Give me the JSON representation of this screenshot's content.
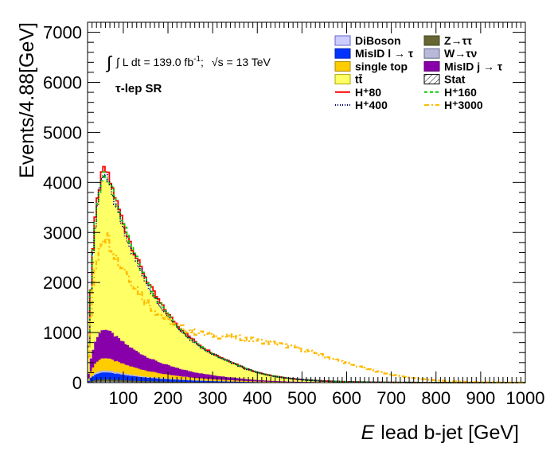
{
  "chart_data": {
    "type": "histogram",
    "xlabel_italic": "E",
    "xlabel": "lead b-jet [GeV]",
    "ylabel": "Events/4.88[GeV]",
    "xlim": [
      20,
      1000
    ],
    "ylim": [
      0,
      7200
    ],
    "x_ticks": [
      100,
      200,
      300,
      400,
      500,
      600,
      700,
      800,
      900,
      1000
    ],
    "y_ticks": [
      0,
      1000,
      2000,
      3000,
      4000,
      5000,
      6000,
      7000
    ],
    "bin_width": 4.88,
    "annotation": {
      "lumi_prefix": "∫ L dt = 139.0 fb",
      "lumi_sup": "-1",
      "lumi_sep": ";",
      "energy_sqrt": "√s",
      "energy_rest": " = 13 TeV",
      "region": "τ-lep SR"
    },
    "legend": [
      {
        "label": "DiBoson",
        "style": "box",
        "color": "#ccccff",
        "border": "#6666cc"
      },
      {
        "label": "Z→ττ",
        "style": "box",
        "color": "#666633",
        "border": "#444422"
      },
      {
        "label": "MisID l → τ",
        "style": "box",
        "color": "#0033ff",
        "border": "#0022aa"
      },
      {
        "label": "W→τν",
        "style": "box",
        "color": "#b8b8d8",
        "border": "#666688"
      },
      {
        "label": "single top",
        "style": "box",
        "color": "#ffcc00",
        "border": "#aa8800"
      },
      {
        "label": "MisID j → τ",
        "style": "box",
        "color": "#8800aa",
        "border": "#550066"
      },
      {
        "label": "tt̄",
        "style": "box",
        "color": "#ffff66",
        "border": "#aaaa00"
      },
      {
        "label": "Stat",
        "style": "hatch",
        "color": "#ffffff",
        "border": "#000000"
      },
      {
        "label": "H⁺80",
        "style": "line",
        "color": "#ff0000",
        "dash": ""
      },
      {
        "label": "H⁺160",
        "style": "line",
        "color": "#00cc00",
        "dash": "4,3"
      },
      {
        "label": "H⁺400",
        "style": "line",
        "color": "#000066",
        "dash": "1,2"
      },
      {
        "label": "H⁺3000",
        "style": "line",
        "color": "#ffbb00",
        "dash": "6,3,2,3"
      }
    ],
    "background_peak": {
      "x": 60,
      "y": 4100
    },
    "stack_components": [
      {
        "name": "DiBoson",
        "color": "#ccccff",
        "fraction": 0.005
      },
      {
        "name": "Z→ττ",
        "color": "#666633",
        "fraction": 0.01
      },
      {
        "name": "MisID l → τ",
        "color": "#0033ff",
        "fraction": 0.035
      },
      {
        "name": "W→τν",
        "color": "#b8b8d8",
        "fraction": 0.01
      },
      {
        "name": "single top",
        "color": "#ffcc00",
        "fraction": 0.06
      },
      {
        "name": "MisID j → τ",
        "color": "#8800aa",
        "fraction": 0.14
      },
      {
        "name": "tt̄",
        "color": "#ffff66",
        "fraction": 0.74
      }
    ],
    "signal_peaks": [
      {
        "name": "H⁺80",
        "x": 60,
        "y": 4300
      },
      {
        "name": "H⁺160",
        "x": 62,
        "y": 4300
      },
      {
        "name": "H⁺400",
        "x": 55,
        "y": 4200
      },
      {
        "name": "H⁺3000",
        "x": 110,
        "y": 2700
      }
    ]
  }
}
